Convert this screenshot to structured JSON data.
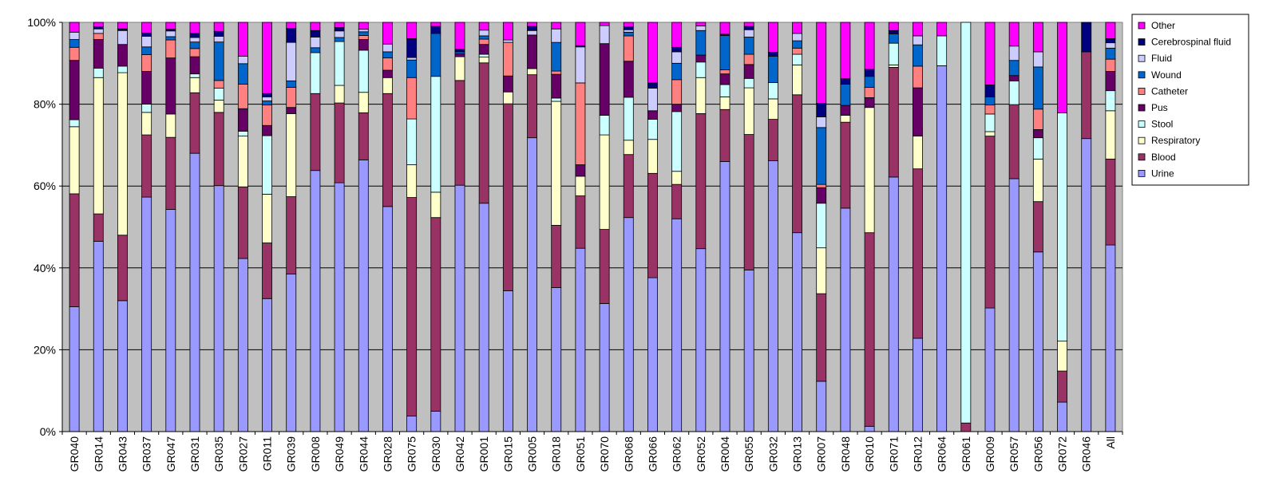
{
  "chart_data": {
    "type": "bar",
    "stacked": true,
    "percent": true,
    "title": "",
    "xlabel": "",
    "ylabel": "",
    "ylim": [
      0,
      100
    ],
    "yticks": [
      "0%",
      "20%",
      "40%",
      "60%",
      "80%",
      "100%"
    ],
    "grid": true,
    "legend_position": "right",
    "plot_background": "#C0C0C0",
    "categories": [
      "GR040",
      "GR014",
      "GR043",
      "GR037",
      "GR047",
      "GR031",
      "GR035",
      "GR027",
      "GR011",
      "GR039",
      "GR008",
      "GR049",
      "GR044",
      "GR028",
      "GR075",
      "GR030",
      "GR042",
      "GR001",
      "GR015",
      "GR005",
      "GR018",
      "GR051",
      "GR070",
      "GR068",
      "GR066",
      "GR062",
      "GR052",
      "GR004",
      "GR055",
      "GR032",
      "GR013",
      "GR007",
      "GR048",
      "GR010",
      "GR071",
      "GR012",
      "GR064",
      "GR061",
      "GR009",
      "GR057",
      "GR056",
      "GR072",
      "GR046",
      "All"
    ],
    "series": [
      {
        "name": "Urine",
        "color": "#9999FF",
        "values": [
          30.5,
          46.5,
          32,
          57.3,
          54.3,
          68,
          60.1,
          42.3,
          32.5,
          38.5,
          63.8,
          60.8,
          66.4,
          55,
          3.8,
          5,
          60.2,
          55.8,
          34.4,
          71.8,
          35.2,
          44.8,
          31.3,
          52.3,
          37.6,
          52,
          44.7,
          66,
          39.5,
          66.2,
          48.6,
          12.3,
          54.6,
          1.3,
          62.2,
          22.8,
          89.4,
          0,
          30.2,
          61.8,
          43.9,
          7.2,
          71.6,
          45.6
        ]
      },
      {
        "name": "Blood",
        "color": "#993366",
        "values": [
          27.6,
          6.7,
          16,
          15.2,
          17.6,
          14.8,
          17.9,
          17.5,
          13.6,
          18.9,
          18.8,
          19.5,
          11.5,
          27.6,
          53.4,
          47.3,
          25.6,
          34.3,
          45.7,
          15.4,
          15.2,
          12.8,
          18.1,
          15.4,
          25.5,
          8.4,
          33,
          12.7,
          33.1,
          10.1,
          33.7,
          21.4,
          21,
          47.3,
          26.8,
          41.4,
          0,
          2.1,
          42,
          18.1,
          12.3,
          7.6,
          21.2,
          21
        ]
      },
      {
        "name": "Respiratory",
        "color": "#FFFFCC",
        "values": [
          16.4,
          33.3,
          39.7,
          5.5,
          5.7,
          3.7,
          3,
          12.4,
          11.9,
          20.3,
          0,
          4.3,
          5,
          3.9,
          8,
          6.2,
          5.8,
          1.4,
          2.9,
          1.5,
          30.3,
          4.8,
          23.1,
          3.5,
          8.3,
          3.2,
          8.8,
          3.1,
          11.4,
          5,
          7.3,
          11.2,
          1.7,
          30.6,
          0.6,
          8,
          0,
          0,
          1.1,
          0,
          10.4,
          7.3,
          0,
          11.8
        ]
      },
      {
        "name": "Stool",
        "color": "#CCFFFF",
        "values": [
          1.7,
          2.3,
          1.6,
          2,
          0,
          0.9,
          2.9,
          1.2,
          14.3,
          0,
          10,
          10.7,
          10.3,
          0,
          11.2,
          28.3,
          0,
          0.7,
          0,
          0,
          0.8,
          0,
          4.8,
          10.5,
          4.9,
          14.6,
          3.8,
          3,
          2.3,
          4,
          2.6,
          10.9,
          0,
          0,
          5.3,
          0,
          7.3,
          97.9,
          4.3,
          5.8,
          5.2,
          55.8,
          0,
          4.9
        ]
      },
      {
        "name": "Pus",
        "color": "#660066",
        "values": [
          14.5,
          7,
          5.3,
          8,
          13.7,
          4.2,
          0,
          5.5,
          2.5,
          1.5,
          0,
          0,
          2.6,
          1.8,
          0,
          0,
          0.7,
          2.4,
          3.9,
          8.2,
          5.8,
          2.8,
          17.5,
          8.8,
          2.1,
          1.8,
          1.7,
          2.6,
          3.4,
          0,
          0,
          3.8,
          2.4,
          2.4,
          0,
          11.8,
          0,
          0,
          0,
          1.3,
          2,
          0,
          0,
          4.7
        ]
      },
      {
        "name": "Catheter",
        "color": "#FF8080",
        "values": [
          3.2,
          1.5,
          0,
          4.1,
          4.4,
          2,
          1.9,
          6,
          5,
          4.9,
          0,
          0,
          1,
          3,
          10.1,
          0,
          0,
          1.3,
          8.2,
          0,
          0.8,
          20,
          0,
          6.2,
          0,
          6,
          0,
          1,
          2.5,
          0,
          1.5,
          0.8,
          0,
          2.5,
          0,
          5.3,
          0,
          0,
          2.2,
          0,
          5,
          0,
          0,
          3
        ]
      },
      {
        "name": "Wound",
        "color": "#0066CC",
        "values": [
          1.9,
          0,
          0,
          1.9,
          0.8,
          1.6,
          9.4,
          5,
          1,
          1.6,
          1.2,
          1,
          0.9,
          1.5,
          4.3,
          10.5,
          0.5,
          0.8,
          0,
          0,
          7,
          0,
          0,
          0.9,
          0,
          4,
          6,
          8.4,
          4.2,
          6.4,
          1.8,
          13.9,
          5.2,
          2.7,
          2.3,
          5.2,
          0,
          0,
          2,
          3.7,
          10.3,
          0,
          0,
          2.7
        ]
      },
      {
        "name": "Fluid",
        "color": "#CCCCFF",
        "values": [
          1.8,
          1.1,
          3.4,
          2.6,
          1.4,
          1.1,
          1.4,
          1.8,
          1,
          9.4,
          2.6,
          1.6,
          0.6,
          1.9,
          0.6,
          0,
          0,
          1.4,
          0.6,
          1.1,
          3.3,
          8.8,
          4.4,
          0.6,
          5.5,
          2.8,
          1.1,
          0,
          1.8,
          0,
          1.8,
          2.6,
          0,
          0,
          0,
          2.2,
          0,
          0,
          0,
          3.5,
          3.7,
          0,
          0,
          1.3
        ]
      },
      {
        "name": "Cerebrospinal fluid",
        "color": "#000080",
        "values": [
          0,
          0.5,
          0.4,
          0.8,
          0.4,
          1,
          1.2,
          0,
          0.8,
          3.4,
          1.6,
          0.8,
          0,
          0,
          4.6,
          1.7,
          0.6,
          0,
          0,
          1,
          0,
          0.3,
          0,
          0.7,
          1.3,
          1.1,
          0,
          0.3,
          0.8,
          1,
          0,
          3.3,
          1.3,
          1.7,
          0.8,
          0,
          0,
          0,
          2.9,
          0,
          0,
          0,
          7.2,
          1
        ]
      },
      {
        "name": "Other",
        "color": "#FF00FF",
        "values": [
          2.4,
          1.1,
          1.6,
          2.6,
          1.7,
          2.7,
          2.2,
          8.3,
          17.4,
          1.5,
          2,
          1.3,
          1.7,
          5.3,
          4,
          1,
          6.6,
          1.9,
          4.3,
          1,
          1.6,
          5.7,
          0.8,
          1.1,
          14.8,
          6.1,
          0.9,
          2.9,
          1,
          7.3,
          2.7,
          19.8,
          13.8,
          11.5,
          2,
          3.3,
          3.3,
          0,
          15.3,
          5.8,
          7.2,
          22.1,
          0,
          4
        ]
      }
    ]
  }
}
